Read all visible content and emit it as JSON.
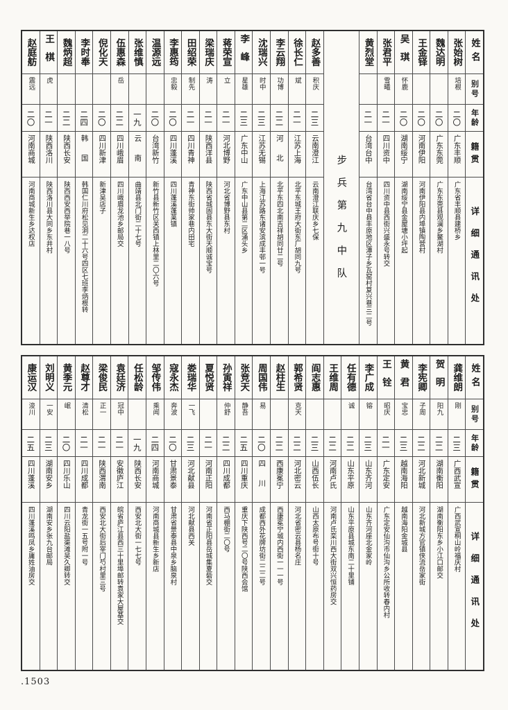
{
  "page": {
    "number": ".1503",
    "section_label": "步兵第九中队"
  },
  "column_headers": {
    "name": "姓名",
    "alias": "别号",
    "age": "年龄",
    "origin": "籍贯",
    "address": "详细通讯处"
  },
  "tables": [
    {
      "id": "top",
      "section_after": 6,
      "entries": [
        {
          "name": "张始树",
          "alias": "培根",
          "age": "二〇",
          "origin": "广东丰顺",
          "address": "广东省丰顺县建桥乡"
        },
        {
          "name": "魏达明",
          "alias": "",
          "age": "二〇",
          "origin": "广东东莞",
          "address": "广东东莞县观澜乡鳌湖村"
        },
        {
          "name": "王金铎",
          "alias": "",
          "age": "二〇",
          "origin": "河南伊阳",
          "address": "河南伊阳县内埠镇陶营村"
        },
        {
          "name": "吴琪",
          "alias": "怀鹿",
          "age": "二〇",
          "origin": "湖南绥宁",
          "address": "湖南绥宁县金屋塘小坪起"
        },
        {
          "name": "张君平",
          "alias": "雪曦",
          "age": "二一",
          "origin": "四川资中",
          "address": "四川资中县西街兴盛永号转交"
        },
        {
          "name": "黄烈堂",
          "alias": "",
          "age": "二一",
          "origin": "台湾台中",
          "address": "台湾省台中县丰原地区潭子乡瓦窑村复兴巷三二号"
        },
        {
          "name": "赵多善",
          "alias": "积庆",
          "age": "二三",
          "origin": "云南澄江",
          "address": "云南澄江联庆乡七保"
        },
        {
          "name": "徐长仁",
          "alias": "斌",
          "age": "二一",
          "origin": "江苏上海",
          "address": "北平东城王府大街东厂胡同九号"
        },
        {
          "name": "李云翔",
          "alias": "功博",
          "age": "二二",
          "origin": "河北",
          "address": "北平东四北南吉祥胡同廿二号"
        },
        {
          "name": "沈瑞兴",
          "alias": "时中",
          "age": "二三",
          "origin": "江苏无锡",
          "address": "上海江苏路东诸安滨成丰邨一号"
        },
        {
          "name": "李峰",
          "alias": "星雄",
          "age": "二三",
          "origin": "广东中山",
          "address": "广东中山县第二区涌头乡"
        },
        {
          "name": "蒋荣宣",
          "alias": "立",
          "age": "二一",
          "origin": "河北博野",
          "address": "河北省博野县东村"
        },
        {
          "name": "梁瑞庆",
          "alias": "涛",
          "age": "二一",
          "origin": "陕西洋县",
          "address": "陕西省城固县东大街天顺诚宝号"
        },
        {
          "name": "田绍荣",
          "alias": "制先",
          "age": "二一",
          "origin": "四川青神",
          "address": "青神东街帅家巷内田宅"
        },
        {
          "name": "李惠筠",
          "alias": "忠毅",
          "age": "二〇",
          "origin": "四川蓬溪",
          "address": "四川蓬溪蓬莱镇"
        },
        {
          "name": "温源远",
          "alias": "",
          "age": "二〇",
          "origin": "台湾新竹",
          "address": "新竹县新竹区关西镇上林里二〇六号"
        },
        {
          "name": "张维慎",
          "alias": "",
          "age": "一九",
          "origin": "云南",
          "address": "曲靖县北门街二十七号"
        },
        {
          "name": "伍惠森",
          "alias": "岳",
          "age": "二二",
          "origin": "四川峨眉",
          "address": "四川峨眉龙池乡邮局交"
        },
        {
          "name": "倪化天",
          "alias": "",
          "age": "二〇",
          "origin": "四川新津",
          "address": "新津吴店子"
        },
        {
          "name": "李时奉",
          "alias": "",
          "age": "二四",
          "origin": "韩国",
          "address": "韩国仁川府松见洞二十六号四区七班李炳根转"
        },
        {
          "name": "魏炳超",
          "alias": "",
          "age": "二二",
          "origin": "陕西长安",
          "address": "陕西西安西举院巷一八号"
        },
        {
          "name": "王棋",
          "alias": "虎",
          "age": "二一",
          "origin": "陕西洛川",
          "address": "陕西洛川县大同乡东井村"
        },
        {
          "name": "赵庭舫",
          "alias": "震远",
          "age": "二〇",
          "origin": "河南商城",
          "address": "河南商城新生乡达权店"
        }
      ]
    },
    {
      "id": "bottom",
      "section_after": -1,
      "entries": [
        {
          "name": "龚维朗",
          "alias": "刚",
          "age": "二三",
          "origin": "广西武宣",
          "address": "广西武宣桐山岭福庆村"
        },
        {
          "name": "贺明",
          "alias": "阳九",
          "age": "二二",
          "origin": "湖南衡阳",
          "address": "湖南衡阳东乡小江口邮交"
        },
        {
          "name": "李宪卿",
          "alias": "子周",
          "age": "二二",
          "origin": "河北新城",
          "address": "河北新城方官镇侠流岳家街"
        },
        {
          "name": "黄君",
          "alias": "宝忠",
          "age": "二三",
          "origin": "越南海阳",
          "address": "越南海阳金城县"
        },
        {
          "name": "王铨",
          "alias": "昭庆",
          "age": "二一",
          "origin": "广东定安",
          "address": "广东定安仙沟市仙沟乡公所收转春内村"
        },
        {
          "name": "李广成",
          "alias": "镕",
          "age": "二三",
          "origin": "山东齐河",
          "address": "山东齐河座北金家岭"
        },
        {
          "name": "任有德",
          "alias": "诚",
          "age": "二二",
          "origin": "山东平原",
          "address": "山东平原县城东南二十里铺"
        },
        {
          "name": "王维周",
          "alias": "",
          "age": "二二",
          "origin": "河南卢氏",
          "address": "河南卢氏栾川西大街双兴恒药房交"
        },
        {
          "name": "阎志惠",
          "alias": "",
          "age": "二三",
          "origin": "山西伍长",
          "address": "山西太原布号街十号"
        },
        {
          "name": "郭希贤",
          "alias": "克天",
          "age": "二二",
          "origin": "河北密云",
          "address": "河北省密云县杨名庄"
        },
        {
          "name": "赵柱生",
          "alias": "",
          "age": "二二",
          "origin": "西康冕宁",
          "address": "西康冕宁城内西街一一一号"
        },
        {
          "name": "周国伟",
          "alias": "易",
          "age": "二〇",
          "origin": "四川",
          "address": "成都西外花牌坊街二二二号"
        },
        {
          "name": "张竞天",
          "alias": "静吾",
          "age": "二五",
          "origin": "四川重庆",
          "address": "重庆下陕西号二〇号陕西会馆"
        },
        {
          "name": "孙寅祥",
          "alias": "仲舒",
          "age": "二二",
          "origin": "四川成都",
          "address": "西马棚街二〇号"
        },
        {
          "name": "夏悦贤",
          "alias": "",
          "age": "二一",
          "origin": "河南正阳",
          "address": "河南省正阳县岳城集夏砦交"
        },
        {
          "name": "娄瑞华",
          "alias": "一飞",
          "age": "二三",
          "origin": "河北献县",
          "address": "河北献县西关"
        },
        {
          "name": "寇永杰",
          "alias": "奔波",
          "age": "二〇",
          "origin": "甘肃景泰",
          "address": "甘肃省景泰县中泉乡脑泉村"
        },
        {
          "name": "邹传伟",
          "alias": "乘闻",
          "age": "二四",
          "origin": "河南商城",
          "address": "河南商城县新生乡新店"
        },
        {
          "name": "任松龄",
          "alias": "",
          "age": "一九",
          "origin": "陕西长安",
          "address": "西安北大街一七七号"
        },
        {
          "name": "袁廷济",
          "alias": "冠中",
          "age": "二一",
          "origin": "安徽庐江",
          "address": "皖省庐江县西三十里埠邮转袁家大屋基交"
        },
        {
          "name": "梁俊民",
          "alias": "正一",
          "age": "二一",
          "origin": "陕西渭南",
          "address": "西安北大街后宰门芍村里三号"
        },
        {
          "name": "赵尊才",
          "alias": "清松",
          "age": "二一",
          "origin": "四川成都",
          "address": "青龙街一五号附一号"
        },
        {
          "name": "黄季元",
          "alias": "岷",
          "age": "二〇",
          "origin": "四川乐山",
          "address": "四川云阳盐渠滩吴久卿转交"
        },
        {
          "name": "刘明义",
          "alias": "一安",
          "age": "二三",
          "origin": "湖南安乡",
          "address": "湖南安乡张九台邮局"
        },
        {
          "name": "康运汉",
          "alias": "浚川",
          "age": "二五",
          "origin": "四川蓬溪",
          "address": "四川蓬溪鸣凤乡庸姓油房交"
        }
      ]
    }
  ]
}
